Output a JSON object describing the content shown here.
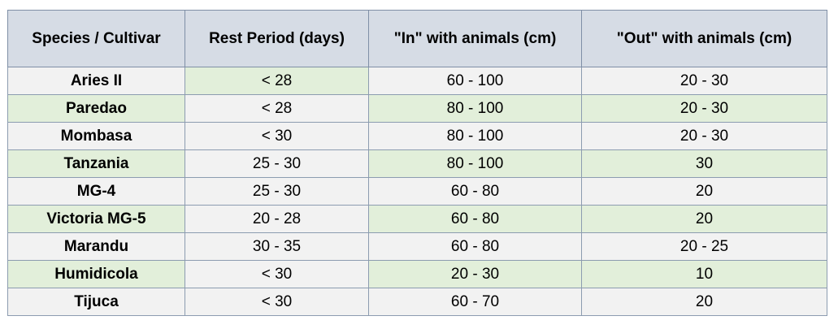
{
  "table": {
    "headers": [
      "Species / Cultivar",
      "Rest Period (days)",
      "\"In\" with animals (cm)",
      "\"Out\" with animals (cm)"
    ],
    "rows": [
      [
        "Aries II",
        "< 28",
        "60 - 100",
        "20 - 30"
      ],
      [
        "Paredao",
        "< 28",
        "80 - 100",
        "20 - 30"
      ],
      [
        "Mombasa",
        "< 30",
        "80 - 100",
        "20 - 30"
      ],
      [
        "Tanzania",
        "25 - 30",
        "80 - 100",
        "30"
      ],
      [
        "MG-4",
        "25 - 30",
        "60 - 80",
        "20"
      ],
      [
        "Victoria MG-5",
        "20 - 28",
        "60 - 80",
        "20"
      ],
      [
        "Marandu",
        "30 - 35",
        "60 - 80",
        "20 - 25"
      ],
      [
        "Humidicola",
        "< 30",
        "20 - 30",
        "10"
      ],
      [
        "Tijuca",
        "< 30",
        "60 - 70",
        "20"
      ]
    ]
  },
  "colors": {
    "header_bg": "#d6dce5",
    "row_light": "#f2f2f2",
    "row_green": "#e2efda",
    "border": "#8c9cb0"
  }
}
